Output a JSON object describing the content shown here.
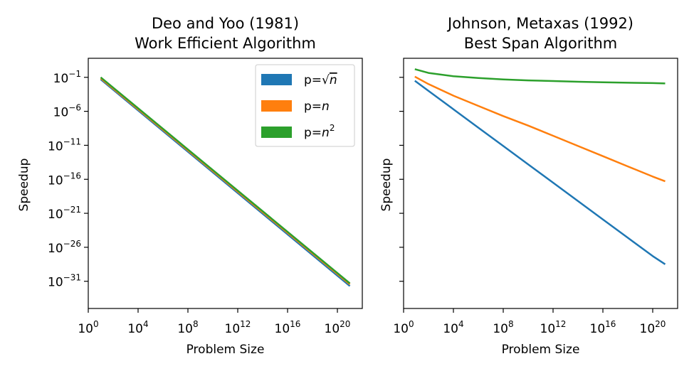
{
  "chart_data": [
    {
      "type": "line",
      "title": [
        "Deo and Yoo (1981)",
        "Work Efficient Algorithm"
      ],
      "xlabel": "Problem Size",
      "ylabel": "Speedup",
      "xscale": "log",
      "yscale": "log",
      "x_ticks": [
        {
          "value": 0,
          "base": "10",
          "exp": "0"
        },
        {
          "value": 4,
          "base": "10",
          "exp": "4"
        },
        {
          "value": 8,
          "base": "10",
          "exp": "8"
        },
        {
          "value": 12,
          "base": "10",
          "exp": "12"
        },
        {
          "value": 16,
          "base": "10",
          "exp": "16"
        },
        {
          "value": 20,
          "base": "10",
          "exp": "20"
        }
      ],
      "y_ticks": [
        {
          "value": -1,
          "base": "10",
          "exp": "−1"
        },
        {
          "value": -6,
          "base": "10",
          "exp": "−6"
        },
        {
          "value": -11,
          "base": "10",
          "exp": "−11"
        },
        {
          "value": -16,
          "base": "10",
          "exp": "−16"
        },
        {
          "value": -21,
          "base": "10",
          "exp": "−21"
        },
        {
          "value": -26,
          "base": "10",
          "exp": "−26"
        },
        {
          "value": -31,
          "base": "10",
          "exp": "−31"
        }
      ],
      "xlim_log10": [
        0,
        22
      ],
      "ylim_log10": [
        -35,
        1.8
      ],
      "legend": "top-right",
      "series": [
        {
          "name_prefix": "p=",
          "name_math": "√n",
          "color": "#1f77b4",
          "x_log10": [
            1,
            21
          ],
          "y_log10": [
            -1.3,
            -31.7
          ]
        },
        {
          "name_prefix": "p=",
          "name_math": "n",
          "color": "#ff7f0e",
          "x_log10": [
            1,
            21
          ],
          "y_log10": [
            -1.15,
            -31.45
          ]
        },
        {
          "name_prefix": "p=",
          "name_math": "n2",
          "color": "#2ca02c",
          "x_log10": [
            1,
            21
          ],
          "y_log10": [
            -1.0,
            -31.3
          ]
        }
      ]
    },
    {
      "type": "line",
      "title": [
        "Johnson, Metaxas (1992)",
        "Best Span Algorithm"
      ],
      "xlabel": "Problem Size",
      "ylabel": "Speedup",
      "xscale": "log",
      "yscale": "log",
      "x_ticks": [
        {
          "value": 0,
          "base": "10",
          "exp": "0"
        },
        {
          "value": 4,
          "base": "10",
          "exp": "4"
        },
        {
          "value": 8,
          "base": "10",
          "exp": "8"
        },
        {
          "value": 12,
          "base": "10",
          "exp": "12"
        },
        {
          "value": 16,
          "base": "10",
          "exp": "16"
        },
        {
          "value": 20,
          "base": "10",
          "exp": "20"
        }
      ],
      "y_ticks_unlabeled": [
        -1,
        -6,
        -11,
        -16,
        -21,
        -26,
        -31
      ],
      "xlim_log10": [
        0,
        22
      ],
      "ylim_log10": [
        -35,
        1.8
      ],
      "series": [
        {
          "name": "p=√n",
          "color": "#1f77b4",
          "x_log10": [
            0.9,
            2,
            4,
            6,
            8,
            10,
            12,
            14,
            16,
            18,
            20,
            21
          ],
          "y_log10": [
            -1.5,
            -3.0,
            -5.7,
            -8.4,
            -11.1,
            -13.8,
            -16.5,
            -19.2,
            -21.9,
            -24.6,
            -27.3,
            -28.5
          ]
        },
        {
          "name": "p=n",
          "color": "#ff7f0e",
          "x_log10": [
            0.9,
            2,
            4,
            6,
            8,
            10,
            12,
            14,
            16,
            18,
            20,
            21
          ],
          "y_log10": [
            -0.9,
            -2.0,
            -3.7,
            -5.2,
            -6.7,
            -8.1,
            -9.6,
            -11.1,
            -12.6,
            -14.1,
            -15.6,
            -16.3
          ]
        },
        {
          "name": "p=n2",
          "color": "#2ca02c",
          "x_log10": [
            0.9,
            2,
            4,
            6,
            8,
            10,
            12,
            14,
            16,
            18,
            20,
            21
          ],
          "y_log10": [
            0.2,
            -0.35,
            -0.85,
            -1.1,
            -1.3,
            -1.45,
            -1.55,
            -1.65,
            -1.72,
            -1.8,
            -1.85,
            -1.9
          ]
        }
      ]
    }
  ]
}
